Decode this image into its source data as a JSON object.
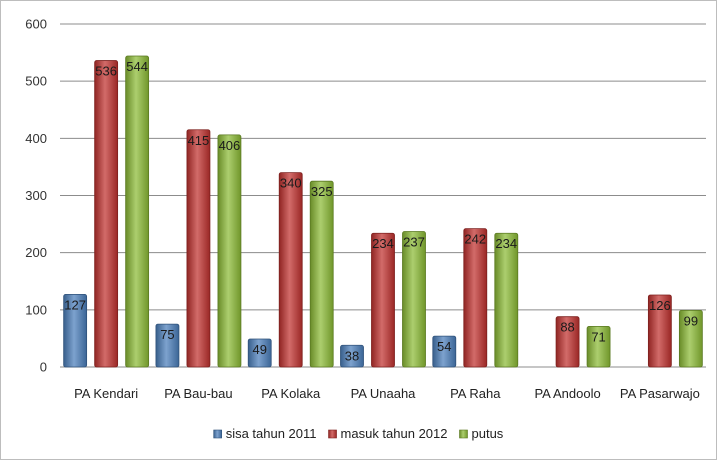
{
  "chart_data": {
    "type": "bar",
    "title": "",
    "xlabel": "",
    "ylabel": "",
    "ylim": [
      0,
      600
    ],
    "yticks": [
      0,
      100,
      200,
      300,
      400,
      500,
      600
    ],
    "grid": true,
    "legend_position": "bottom",
    "categories": [
      "PA Kendari",
      "PA Bau-bau",
      "PA Kolaka",
      "PA Unaaha",
      "PA Raha",
      "PA Andoolo",
      "PA Pasarwajo"
    ],
    "series": [
      {
        "name": "sisa tahun 2011",
        "color": "#4a7ebb",
        "values": [
          127,
          75,
          49,
          38,
          54,
          null,
          null
        ],
        "labels": [
          "127",
          "75",
          "49",
          "38",
          "54",
          "",
          ""
        ]
      },
      {
        "name": "masuk tahun 2012",
        "color": "#c0312e",
        "values": [
          536,
          415,
          340,
          234,
          242,
          88,
          126
        ],
        "labels": [
          "536",
          "415",
          "340",
          "234",
          "242",
          "88",
          "126"
        ]
      },
      {
        "name": "putus",
        "color": "#8cbb35",
        "values": [
          544,
          406,
          325,
          237,
          234,
          71,
          99
        ],
        "labels": [
          "544",
          "406",
          "325",
          "237",
          "234",
          "71",
          "99"
        ]
      }
    ]
  }
}
